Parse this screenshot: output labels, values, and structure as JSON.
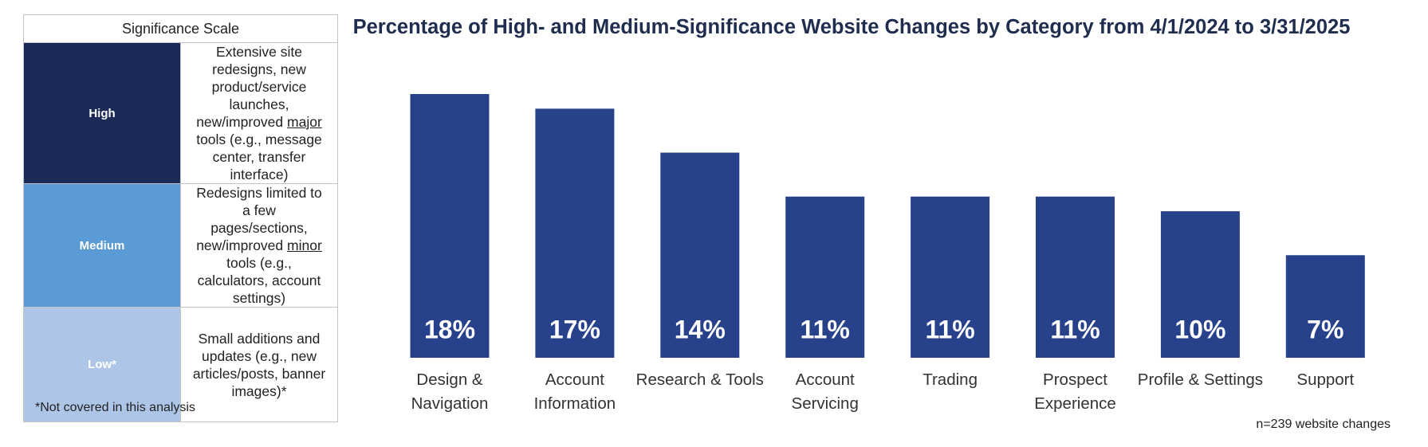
{
  "scale_table": {
    "title": "Significance Scale",
    "rows": [
      {
        "level": "High",
        "color": "#1b2a57",
        "text_color": "#ffffff",
        "segments": [
          {
            "text": "Extensive site redesigns, new product/service launches, new/improved ",
            "underline": false
          },
          {
            "text": "major",
            "underline": true
          },
          {
            "text": " tools (e.g., message center, transfer interface)",
            "underline": false
          }
        ]
      },
      {
        "level": "Medium",
        "color": "#5b9bd5",
        "text_color": "#ffffff",
        "segments": [
          {
            "text": "Redesigns limited to a few pages/sections, new/improved ",
            "underline": false
          },
          {
            "text": "minor",
            "underline": true
          },
          {
            "text": " tools (e.g., calculators, account settings)",
            "underline": false
          }
        ]
      },
      {
        "level": "Low*",
        "color": "#adc6e8",
        "text_color": "#ffffff",
        "segments": [
          {
            "text": "Small additions and updates (e.g., new articles/posts, banner images)*",
            "underline": false
          }
        ]
      }
    ],
    "footnote": "*Not covered in this analysis"
  },
  "chart_data": {
    "type": "bar",
    "title": "Percentage of High- and Medium-Significance Website Changes by Category from 4/1/2024 to 3/31/2025",
    "categories": [
      "Design &\nNavigation",
      "Account\nInformation",
      "Research & Tools",
      "Account\nServicing",
      "Trading",
      "Prospect\nExperience",
      "Profile & Settings",
      "Support"
    ],
    "values": [
      18,
      17,
      14,
      11,
      11,
      11,
      10,
      7
    ],
    "value_labels": [
      "18%",
      "17%",
      "14%",
      "11%",
      "11%",
      "11%",
      "10%",
      "7%"
    ],
    "color": "#27428a",
    "note": "n=239 website changes"
  }
}
